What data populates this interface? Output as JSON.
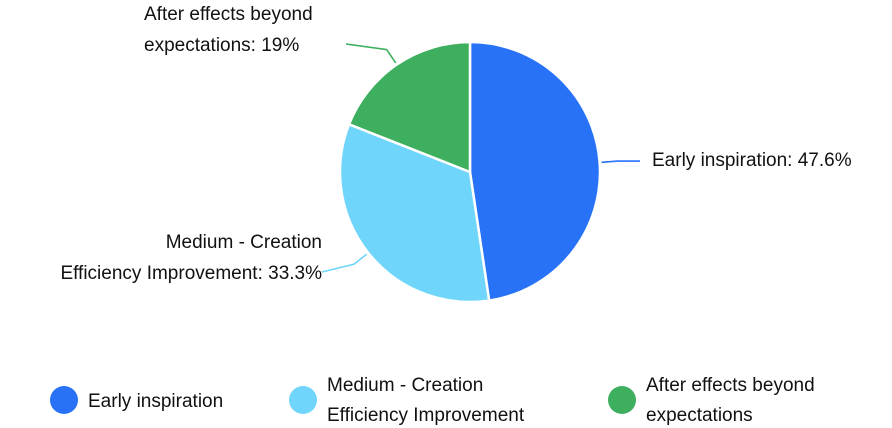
{
  "chart_data": {
    "type": "pie",
    "title": "",
    "unit": "%",
    "categories": [
      "Early inspiration",
      "Medium - Creation Efficiency Improvement",
      "After effects beyond expectations"
    ],
    "values": [
      47.6,
      33.3,
      19.0
    ],
    "colors": [
      "#2872f7",
      "#70d5fb",
      "#3daf5e"
    ],
    "slice_labels": [
      [
        "Early inspiration: 47.6%"
      ],
      [
        "Medium - Creation",
        "Efficiency Improvement: 33.3%"
      ],
      [
        "After effects beyond",
        "expectations: 19%"
      ]
    ],
    "legend": {
      "position": "bottom",
      "items": [
        [
          "Early inspiration"
        ],
        [
          "Medium - Creation",
          "Efficiency Improvement"
        ],
        [
          "After effects beyond",
          "expectations"
        ]
      ]
    }
  }
}
